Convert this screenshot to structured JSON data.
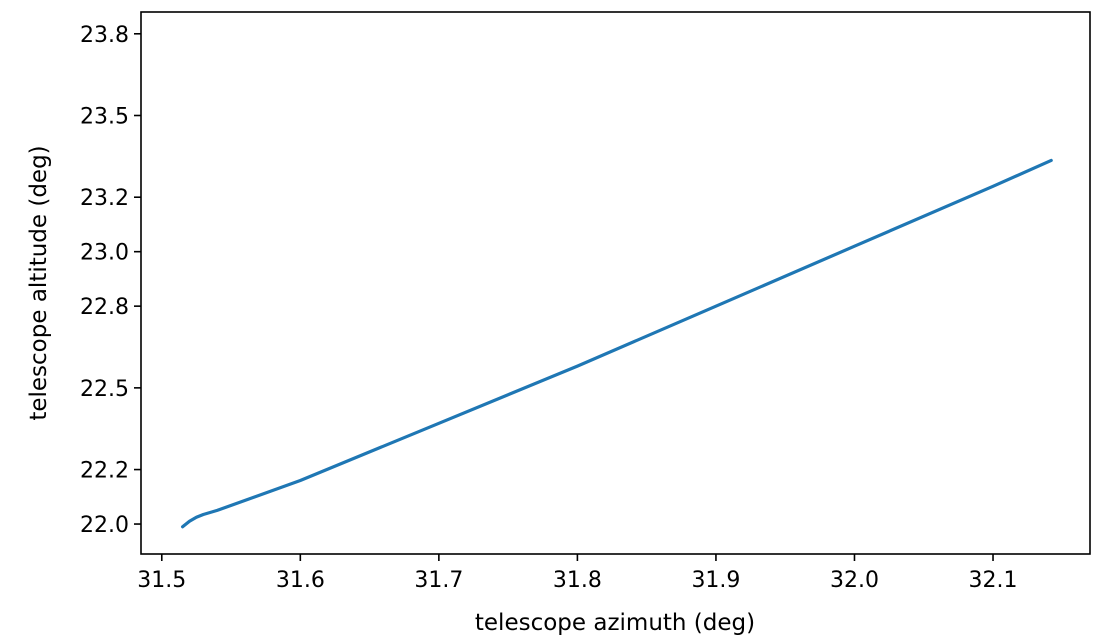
{
  "chart_data": {
    "type": "line",
    "title": "",
    "xlabel": "telescope azimuth (deg)",
    "ylabel": "telescope altitude (deg)",
    "xlim": [
      31.485,
      32.17
    ],
    "ylim": [
      21.89,
      23.88
    ],
    "xticks": [
      31.5,
      31.6,
      31.7,
      31.8,
      31.9,
      32.0,
      32.1
    ],
    "xtick_labels": [
      "31.5",
      "31.6",
      "31.7",
      "31.8",
      "31.9",
      "32.0",
      "32.1"
    ],
    "yticks": [
      22.0,
      22.2,
      22.5,
      22.8,
      23.0,
      23.2,
      23.5,
      23.8
    ],
    "ytick_labels": [
      "22.0",
      "22.2",
      "22.5",
      "22.8",
      "23.0",
      "23.2",
      "23.5",
      "23.8"
    ],
    "grid": false,
    "series": [
      {
        "color": "#1f77b4",
        "x": [
          31.515,
          31.52,
          31.525,
          31.53,
          31.54,
          31.6,
          31.7,
          31.8,
          31.9,
          32.0,
          32.1,
          32.142
        ],
        "y": [
          21.99,
          22.01,
          22.025,
          22.035,
          22.05,
          22.16,
          22.37,
          22.58,
          22.8,
          23.02,
          23.24,
          23.335
        ]
      }
    ]
  }
}
